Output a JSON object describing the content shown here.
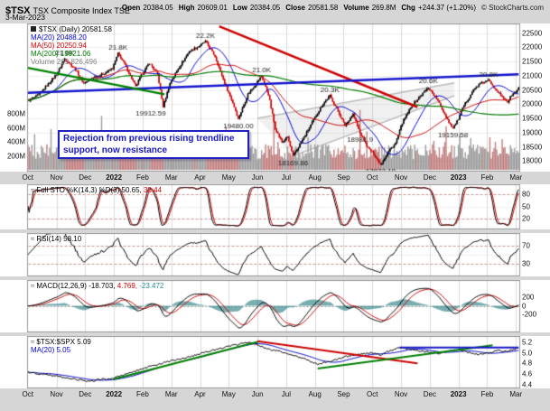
{
  "header": {
    "symbol": "$TSX",
    "name": "TSX Composite Index",
    "exchange": "TSE",
    "date": "3-Mar-2023",
    "copyright": "© StockCharts.com",
    "quote": [
      {
        "label": "Open",
        "value": "20384.05"
      },
      {
        "label": "High",
        "value": "20609.01"
      },
      {
        "label": "Low",
        "value": "20384.05"
      },
      {
        "label": "Close",
        "value": "20581.58"
      },
      {
        "label": "Volume",
        "value": "269.8M"
      },
      {
        "label": "Chg",
        "value": "+244.37 (+1.20%)"
      }
    ]
  },
  "main": {
    "annotation": "Rejection from previous rising trendline support, now resistance",
    "y_ticks": [
      "22500",
      "22000",
      "21500",
      "21000",
      "20500",
      "20000",
      "19500",
      "19000",
      "18500",
      "18000"
    ]
  },
  "legends": {
    "main": [
      [
        {
          "text": "$TSX (Daily) 20581.58",
          "color": "#000000"
        }
      ],
      [
        {
          "text": "MA(20) 20488.20",
          "color": "#0000CC"
        }
      ],
      [
        {
          "text": "MA(50) 20250.94",
          "color": "#CC0000"
        }
      ],
      [
        {
          "text": "MA(200) 19921.06",
          "color": "#007A00"
        }
      ],
      [
        {
          "text": "Volume 269,826,496",
          "color": "#808080"
        }
      ]
    ],
    "stoch": [
      [
        {
          "text": "Full STO %K(14,3) %D(3) ",
          "color": "#000000"
        },
        {
          "text": "50.65, ",
          "color": "#000000"
        },
        {
          "text": "38.44",
          "color": "#CC0000"
        }
      ]
    ],
    "rsi": [
      [
        {
          "text": "RSI(14) 58.10",
          "color": "#000000"
        }
      ]
    ],
    "macd": [
      [
        {
          "text": "MACD(12,26,9) ",
          "color": "#000000"
        },
        {
          "text": "-18.703, ",
          "color": "#000000"
        },
        {
          "text": "4.769, ",
          "color": "#CC0000"
        },
        {
          "text": "-23.472",
          "color": "#2E8B8B"
        }
      ]
    ],
    "ratio": [
      [
        {
          "text": "$TSX:$SPX 5.09",
          "color": "#000000"
        }
      ],
      [
        {
          "text": "MA(20) 5.05",
          "color": "#0000CC"
        }
      ]
    ]
  },
  "chart_data": {
    "type": "candlestick-multi-panel",
    "bars": 360,
    "x_ticks": [
      "Oct",
      "Nov",
      "Dec",
      "2022",
      "Feb",
      "Mar",
      "Apr",
      "May",
      "Jun",
      "Jul",
      "Aug",
      "Sep",
      "Oct",
      "Nov",
      "Dec",
      "2023",
      "Feb",
      "Mar"
    ],
    "month_start_indices": [
      0,
      21,
      42,
      63,
      84,
      105,
      126,
      147,
      168,
      189,
      210,
      231,
      252,
      273,
      294,
      315,
      336,
      357
    ],
    "price": {
      "ylim": [
        17690,
        22810
      ],
      "grid_step": 500,
      "last_close": 20581.58,
      "ohlc_today": {
        "open": 20384.05,
        "high": 20609.01,
        "low": 20384.05,
        "close": 20581.58
      },
      "ma_values": {
        "ma20": 20488.2,
        "ma50": 20250.94,
        "ma200": 19921.06
      },
      "close_anchors": [
        [
          0,
          20120
        ],
        [
          8,
          20320
        ],
        [
          21,
          21050
        ],
        [
          27,
          21600
        ],
        [
          34,
          21280
        ],
        [
          41,
          20740
        ],
        [
          48,
          20950
        ],
        [
          56,
          21080
        ],
        [
          62,
          21260
        ],
        [
          66,
          21780
        ],
        [
          71,
          21400
        ],
        [
          79,
          20620
        ],
        [
          83,
          21020
        ],
        [
          89,
          21450
        ],
        [
          95,
          21050
        ],
        [
          99,
          19915
        ],
        [
          104,
          20730
        ],
        [
          110,
          21250
        ],
        [
          118,
          21850
        ],
        [
          127,
          22100
        ],
        [
          130,
          22210
        ],
        [
          137,
          21680
        ],
        [
          144,
          20740
        ],
        [
          150,
          20050
        ],
        [
          154,
          19480
        ],
        [
          161,
          20350
        ],
        [
          167,
          20730
        ],
        [
          171,
          20990
        ],
        [
          176,
          20350
        ],
        [
          181,
          19150
        ],
        [
          186,
          18650
        ],
        [
          190,
          18850
        ],
        [
          194,
          18172
        ],
        [
          201,
          18750
        ],
        [
          208,
          19350
        ],
        [
          215,
          19950
        ],
        [
          221,
          20300
        ],
        [
          227,
          19750
        ],
        [
          232,
          19250
        ],
        [
          238,
          19650
        ],
        [
          243,
          18985
        ],
        [
          249,
          18450
        ],
        [
          253,
          18250
        ],
        [
          258,
          17875
        ],
        [
          264,
          18350
        ],
        [
          269,
          18620
        ],
        [
          274,
          19350
        ],
        [
          281,
          19950
        ],
        [
          288,
          20330
        ],
        [
          293,
          20580
        ],
        [
          299,
          20200
        ],
        [
          305,
          19650
        ],
        [
          308,
          19380
        ],
        [
          311,
          19160
        ],
        [
          315,
          19480
        ],
        [
          319,
          19950
        ],
        [
          326,
          20500
        ],
        [
          331,
          20720
        ],
        [
          337,
          20840
        ],
        [
          342,
          20560
        ],
        [
          347,
          20250
        ],
        [
          351,
          20080
        ],
        [
          354,
          20330
        ],
        [
          357,
          20420
        ],
        [
          359,
          20581.58
        ]
      ]
    },
    "volume": {
      "today": "269.8M",
      "ticks": [
        [
          "800M",
          800000000
        ],
        [
          "600M",
          600000000
        ],
        [
          "400M",
          400000000
        ],
        [
          "200M",
          200000000
        ]
      ],
      "spike_indices": [
        54,
        117,
        180,
        243,
        306
      ]
    },
    "callouts": [
      {
        "i": 27,
        "price": 21600,
        "text": "21.6K",
        "pos": "above"
      },
      {
        "i": 66,
        "price": 21800,
        "text": "21.8K",
        "pos": "above"
      },
      {
        "i": 90,
        "price": 19915,
        "text": "19912.59",
        "pos": "below"
      },
      {
        "i": 130,
        "price": 22213,
        "text": "22.2K",
        "pos": "above"
      },
      {
        "i": 171,
        "price": 21000,
        "text": "21.0K",
        "pos": "above"
      },
      {
        "i": 154,
        "price": 19480,
        "text": "19480.00",
        "pos": "below"
      },
      {
        "i": 194,
        "price": 18172,
        "text": "18169.86",
        "pos": "below"
      },
      {
        "i": 221,
        "price": 20300,
        "text": "20.3K",
        "pos": "above"
      },
      {
        "i": 243,
        "price": 18985,
        "text": "18981.9",
        "pos": "below"
      },
      {
        "i": 258,
        "price": 17875,
        "text": "17873.18",
        "pos": "below"
      },
      {
        "i": 293,
        "price": 20600,
        "text": "20.6K",
        "pos": "above"
      },
      {
        "i": 311,
        "price": 19160,
        "text": "19159.58",
        "pos": "below"
      },
      {
        "i": 337,
        "price": 20843,
        "text": "20.8K",
        "pos": "above"
      }
    ],
    "trendlines": [
      {
        "name": "downtrend-resistance-line",
        "color": "#CC0000",
        "width": 2.5,
        "layer": "over",
        "from": [
          140,
          22740
        ],
        "to": [
          285,
          19900
        ]
      },
      {
        "name": "rising-support-now-resistance-line",
        "color": "#1414CC",
        "width": 2.5,
        "layer": "over",
        "from": [
          0,
          20400
        ],
        "to": [
          359,
          21050
        ]
      },
      {
        "name": "long-term-trendline",
        "color": "#008000",
        "width": 2.5,
        "layer": "over",
        "from": [
          0,
          21280
        ],
        "to": [
          100,
          20350
        ]
      },
      {
        "name": "wedge-upper-line",
        "color": "#BBBBBB",
        "width": 1.5,
        "layer": "under",
        "from": [
          168,
          19500
        ],
        "to": [
          312,
          20750
        ]
      },
      {
        "name": "wedge-lower-line",
        "color": "#BBBBBB",
        "width": 1.5,
        "layer": "under",
        "from": [
          194,
          18180
        ],
        "to": [
          312,
          20300
        ]
      }
    ],
    "wedge": [
      [
        168,
        19500
      ],
      [
        312,
        20750
      ],
      [
        312,
        20300
      ],
      [
        194,
        18180
      ]
    ],
    "stoch": {
      "label": "Full STO %K(14,3) %D(3)",
      "k": 50.65,
      "d": 38.44,
      "ticks": [
        80,
        50,
        20
      ],
      "ylim": [
        0,
        100
      ]
    },
    "rsi": {
      "label": "RSI(14)",
      "value": 58.1,
      "ticks": [
        70,
        30
      ],
      "lines": [
        70,
        50,
        30
      ],
      "ylim": [
        8,
        94
      ]
    },
    "macd": {
      "label": "MACD(12,26,9)",
      "macd": -18.703,
      "signal": 4.769,
      "hist": -23.472,
      "ticks": [
        200,
        0,
        -200
      ]
    },
    "ratio": {
      "label": "$TSX:$SPX",
      "last": 5.09,
      "ma_label": "MA(20)",
      "ma": 5.05,
      "ylim": [
        4.36,
        5.3
      ],
      "ticks": [
        [
          "5.2",
          5.2
        ],
        [
          "5.0",
          5.0
        ],
        [
          "4.8",
          4.8
        ],
        [
          "4.6",
          4.6
        ],
        [
          "4.4",
          4.4
        ]
      ],
      "anchors": [
        [
          0,
          4.63
        ],
        [
          15,
          4.58
        ],
        [
          30,
          4.52
        ],
        [
          45,
          4.46
        ],
        [
          55,
          4.5
        ],
        [
          63,
          4.52
        ],
        [
          75,
          4.62
        ],
        [
          84,
          4.7
        ],
        [
          95,
          4.78
        ],
        [
          105,
          4.85
        ],
        [
          118,
          4.92
        ],
        [
          126,
          4.98
        ],
        [
          140,
          5.08
        ],
        [
          152,
          5.15
        ],
        [
          163,
          5.21
        ],
        [
          170,
          5.12
        ],
        [
          178,
          5.06
        ],
        [
          186,
          5.02
        ],
        [
          194,
          4.96
        ],
        [
          203,
          4.88
        ],
        [
          212,
          4.78
        ],
        [
          222,
          4.84
        ],
        [
          231,
          4.92
        ],
        [
          240,
          4.96
        ],
        [
          250,
          5.0
        ],
        [
          258,
          4.96
        ],
        [
          265,
          5.04
        ],
        [
          273,
          5.1
        ],
        [
          282,
          5.05
        ],
        [
          292,
          5.02
        ],
        [
          300,
          4.99
        ],
        [
          308,
          5.03
        ],
        [
          315,
          5.06
        ],
        [
          323,
          5.0
        ],
        [
          330,
          4.97
        ],
        [
          337,
          4.99
        ],
        [
          344,
          5.04
        ],
        [
          350,
          5.03
        ],
        [
          356,
          5.07
        ],
        [
          359,
          5.09
        ]
      ],
      "trendlines": [
        {
          "name": "ratio-uptrend-line-1",
          "color": "#008000",
          "width": 2,
          "from": [
            63,
            4.5
          ],
          "to": [
            170,
            5.22
          ]
        },
        {
          "name": "ratio-downtrend-line",
          "color": "#CC0000",
          "width": 2,
          "from": [
            168,
            5.22
          ],
          "to": [
            285,
            4.8
          ]
        },
        {
          "name": "ratio-uptrend-line-2",
          "color": "#008000",
          "width": 2,
          "from": [
            212,
            4.7
          ],
          "to": [
            340,
            5.14
          ]
        },
        {
          "name": "ratio-resistance-line",
          "color": "#1414CC",
          "width": 2,
          "from": [
            272,
            5.1
          ],
          "to": [
            359,
            5.1
          ]
        }
      ]
    }
  }
}
